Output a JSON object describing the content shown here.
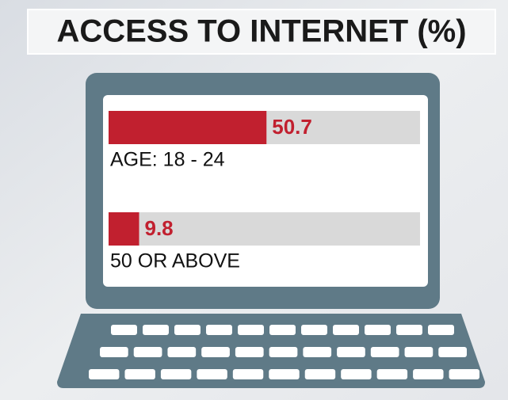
{
  "chart_data": {
    "type": "bar",
    "orientation": "horizontal",
    "title": "ACCESS TO INTERNET (%)",
    "categories": [
      "AGE: 18 - 24",
      "50 OR ABOVE"
    ],
    "values": [
      50.7,
      9.8
    ],
    "color": "#c1202f",
    "xlim": [
      0,
      100
    ]
  }
}
